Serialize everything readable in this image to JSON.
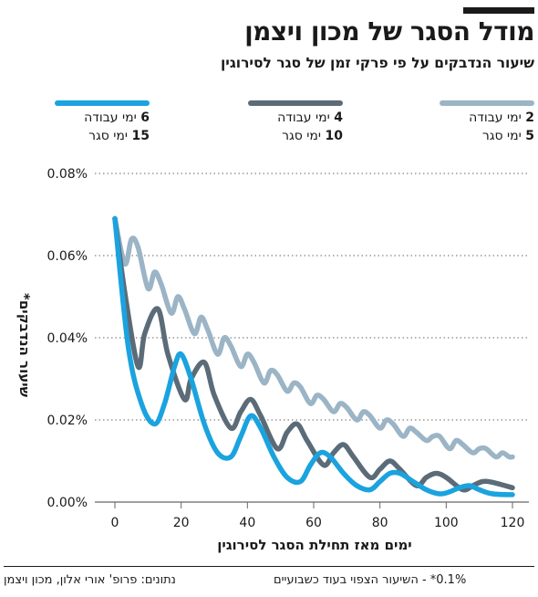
{
  "title": "מודל הסגר של מכון ויצמן",
  "subtitle": "שיעור הנדבקים על פי פרקי זמן של סגר לסירוגין",
  "legend": [
    {
      "work_num": "2",
      "work_text": "ימי עבודה",
      "lock_num": "5",
      "lock_text": "ימי סגר",
      "color": "#9bb4c6"
    },
    {
      "work_num": "4",
      "work_text": "ימי עבודה",
      "lock_num": "10",
      "lock_text": "ימי סגר",
      "color": "#5b6b77"
    },
    {
      "work_num": "6",
      "work_text": "ימי עבודה",
      "lock_num": "15",
      "lock_text": "ימי סגר",
      "color": "#1aa3df"
    }
  ],
  "footer": {
    "note": "0.1%* - השיעור הצפוי בעוד כשבועיים",
    "source": "נתונים: פרופ' אורי אלון, מכון ויצמן"
  },
  "chart_data": {
    "type": "line",
    "xlabel": "ימים מאז תחילת הסגר לסירוגין",
    "ylabel": "שיעור הנדבקים*",
    "xlim": [
      0,
      120
    ],
    "ylim": [
      0,
      0.08
    ],
    "x_ticks": [
      0,
      20,
      40,
      60,
      80,
      100,
      120
    ],
    "x_tick_labels": [
      "0",
      "20",
      "40",
      "60",
      "80",
      "100",
      "120"
    ],
    "y_ticks": [
      0,
      0.02,
      0.04,
      0.06,
      0.08
    ],
    "y_tick_labels": [
      "0.00%",
      "0.02%",
      "0.04%",
      "0.06%",
      "0.08%"
    ],
    "grid": "horizontal dotted",
    "series": [
      {
        "legend_index": 0,
        "color": "#9bb4c6",
        "points": [
          [
            0,
            0.069
          ],
          [
            3,
            0.058
          ],
          [
            5,
            0.064
          ],
          [
            7,
            0.062
          ],
          [
            10,
            0.052
          ],
          [
            12,
            0.056
          ],
          [
            14,
            0.053
          ],
          [
            17,
            0.046
          ],
          [
            19,
            0.05
          ],
          [
            21,
            0.047
          ],
          [
            24,
            0.041
          ],
          [
            26,
            0.045
          ],
          [
            28,
            0.042
          ],
          [
            31,
            0.036
          ],
          [
            33,
            0.04
          ],
          [
            35,
            0.038
          ],
          [
            38,
            0.033
          ],
          [
            40,
            0.036
          ],
          [
            42,
            0.034
          ],
          [
            45,
            0.029
          ],
          [
            47,
            0.032
          ],
          [
            49,
            0.031
          ],
          [
            52,
            0.027
          ],
          [
            54,
            0.029
          ],
          [
            56,
            0.028
          ],
          [
            59,
            0.024
          ],
          [
            61,
            0.026
          ],
          [
            63,
            0.025
          ],
          [
            66,
            0.022
          ],
          [
            68,
            0.024
          ],
          [
            70,
            0.023
          ],
          [
            73,
            0.02
          ],
          [
            75,
            0.022
          ],
          [
            77,
            0.021
          ],
          [
            80,
            0.018
          ],
          [
            82,
            0.02
          ],
          [
            84,
            0.019
          ],
          [
            87,
            0.016
          ],
          [
            89,
            0.018
          ],
          [
            91,
            0.017
          ],
          [
            94,
            0.015
          ],
          [
            96,
            0.016
          ],
          [
            98,
            0.016
          ],
          [
            101,
            0.013
          ],
          [
            103,
            0.015
          ],
          [
            105,
            0.014
          ],
          [
            108,
            0.012
          ],
          [
            110,
            0.013
          ],
          [
            112,
            0.013
          ],
          [
            115,
            0.011
          ],
          [
            117,
            0.012
          ],
          [
            119,
            0.011
          ],
          [
            120,
            0.011
          ]
        ]
      },
      {
        "legend_index": 1,
        "color": "#5b6b77",
        "points": [
          [
            0,
            0.069
          ],
          [
            3,
            0.051
          ],
          [
            7,
            0.033
          ],
          [
            9,
            0.041
          ],
          [
            13,
            0.047
          ],
          [
            16,
            0.036
          ],
          [
            21,
            0.025
          ],
          [
            23,
            0.03
          ],
          [
            27,
            0.034
          ],
          [
            30,
            0.026
          ],
          [
            35,
            0.018
          ],
          [
            38,
            0.022
          ],
          [
            41,
            0.025
          ],
          [
            44,
            0.021
          ],
          [
            49,
            0.013
          ],
          [
            52,
            0.017
          ],
          [
            55,
            0.019
          ],
          [
            58,
            0.015
          ],
          [
            63,
            0.009
          ],
          [
            66,
            0.012
          ],
          [
            69,
            0.014
          ],
          [
            72,
            0.011
          ],
          [
            77,
            0.006
          ],
          [
            80,
            0.008
          ],
          [
            83,
            0.01
          ],
          [
            86,
            0.008
          ],
          [
            91,
            0.004
          ],
          [
            94,
            0.006
          ],
          [
            97,
            0.007
          ],
          [
            100,
            0.006
          ],
          [
            105,
            0.003
          ],
          [
            108,
            0.004
          ],
          [
            111,
            0.005
          ],
          [
            114,
            0.0048
          ],
          [
            120,
            0.0035
          ]
        ]
      },
      {
        "legend_index": 2,
        "color": "#1aa3df",
        "points": [
          [
            0,
            0.069
          ],
          [
            4,
            0.038
          ],
          [
            8,
            0.024
          ],
          [
            12,
            0.019
          ],
          [
            15,
            0.024
          ],
          [
            18,
            0.033
          ],
          [
            20,
            0.036
          ],
          [
            23,
            0.03
          ],
          [
            27,
            0.019
          ],
          [
            31,
            0.012
          ],
          [
            35,
            0.011
          ],
          [
            38,
            0.016
          ],
          [
            41,
            0.021
          ],
          [
            44,
            0.018
          ],
          [
            48,
            0.011
          ],
          [
            52,
            0.006
          ],
          [
            56,
            0.005
          ],
          [
            59,
            0.009
          ],
          [
            62,
            0.012
          ],
          [
            65,
            0.011
          ],
          [
            69,
            0.007
          ],
          [
            73,
            0.004
          ],
          [
            77,
            0.003
          ],
          [
            80,
            0.005
          ],
          [
            83,
            0.007
          ],
          [
            86,
            0.007
          ],
          [
            90,
            0.005
          ],
          [
            94,
            0.003
          ],
          [
            98,
            0.002
          ],
          [
            101,
            0.0025
          ],
          [
            104,
            0.0035
          ],
          [
            107,
            0.004
          ],
          [
            110,
            0.003
          ],
          [
            114,
            0.002
          ],
          [
            120,
            0.0018
          ]
        ]
      }
    ]
  }
}
